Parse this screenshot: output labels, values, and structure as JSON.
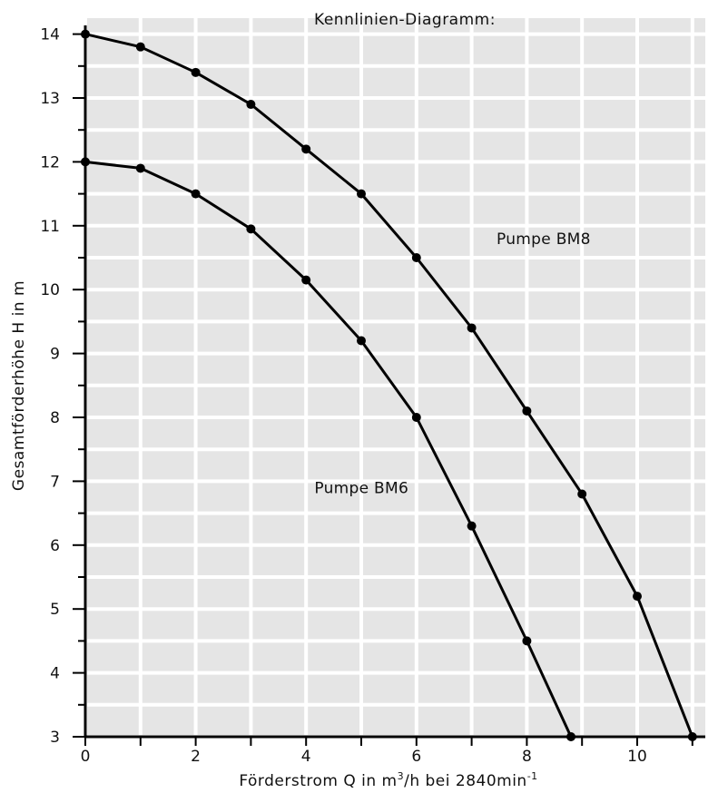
{
  "chart_data": {
    "type": "line",
    "title": "Kennlinien-Diagramm:",
    "xlabel_main": "Förderstrom Q in m",
    "xlabel_sup1": "3",
    "xlabel_mid": "/h bei 2840min",
    "xlabel_sup2": "-1",
    "ylabel": "Gesamtförderhöhe H in m",
    "xlim": [
      0,
      11.5
    ],
    "ylim": [
      3,
      14.4
    ],
    "x_ticks": [
      0,
      2,
      4,
      6,
      8,
      10
    ],
    "y_ticks": [
      3,
      4,
      5,
      6,
      7,
      8,
      9,
      10,
      11,
      12,
      13,
      14
    ],
    "x_gridlines": [
      0,
      1,
      2,
      3,
      4,
      5,
      6,
      7,
      8,
      9,
      10,
      11
    ],
    "y_gridlines": [
      3,
      3.5,
      4,
      4.5,
      5,
      5.5,
      6,
      6.5,
      7,
      7.5,
      8,
      8.5,
      9,
      9.5,
      10,
      10.5,
      11,
      11.5,
      12,
      12.5,
      13,
      13.5,
      14
    ],
    "grid": true,
    "background_color": "#e5e5e5",
    "grid_color": "#ffffff",
    "line_color": "#000000",
    "series": [
      {
        "name": "Pumpe BM8",
        "x": [
          0,
          1,
          2,
          3,
          4,
          5,
          6,
          7,
          8,
          9,
          10,
          11
        ],
        "y": [
          14.0,
          13.8,
          13.4,
          12.9,
          12.2,
          11.5,
          10.5,
          9.4,
          8.1,
          6.8,
          5.2,
          3.0
        ]
      },
      {
        "name": "Pumpe BM6",
        "x": [
          0,
          1,
          2,
          3,
          4,
          5,
          6,
          7,
          8,
          8.8
        ],
        "y": [
          12.0,
          11.9,
          11.5,
          10.95,
          10.15,
          9.2,
          8.0,
          6.3,
          4.5,
          3.0
        ]
      }
    ],
    "annotations": [
      {
        "text": "Pumpe BM8",
        "x": 7.45,
        "y": 10.8
      },
      {
        "text": "Pumpe BM6",
        "x": 4.15,
        "y": 6.9
      }
    ]
  }
}
